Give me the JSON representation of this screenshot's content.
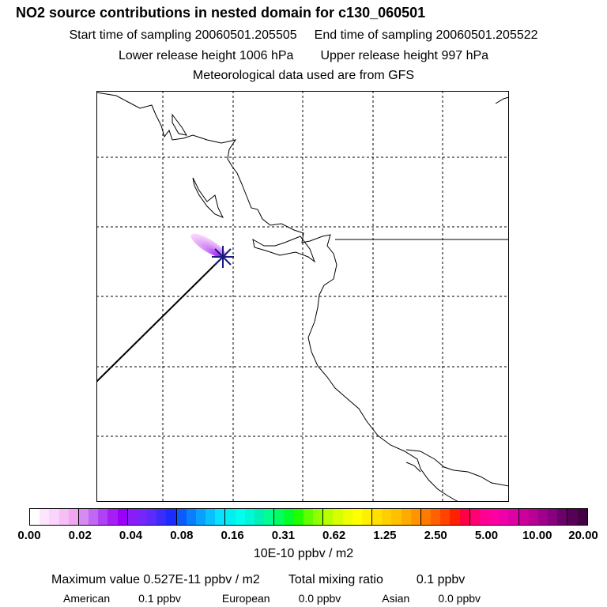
{
  "title": "NO2 source contributions in nested domain for c130_060501",
  "start_time": "Start time of sampling 20060501.205505",
  "end_time": "End time of sampling 20060501.205522",
  "lower_release": "Lower release height 1006 hPa",
  "upper_release": "Upper release height  997 hPa",
  "met_data": "Meteorological data used are from GFS",
  "colorbar": {
    "ticks": [
      "0.00",
      "0.02",
      "0.04",
      "0.08",
      "0.16",
      "0.31",
      "0.62",
      "1.25",
      "2.50",
      "5.00",
      "10.00",
      "20.00"
    ],
    "units": "10E-10 ppbv / m2",
    "colors": [
      "#ffffff",
      "#fde6fd",
      "#fbd4fb",
      "#f7bdf7",
      "#f2a6f2",
      "#d58cf2",
      "#c267f3",
      "#b142f4",
      "#a51ff5",
      "#9a00f7",
      "#8a1cf8",
      "#7526fa",
      "#5c2bfb",
      "#3b2cfc",
      "#1a2cff",
      "#0a5cff",
      "#0a7eff",
      "#0aa0ff",
      "#0ac0ff",
      "#0ae0ff",
      "#00f0f0",
      "#00ffee",
      "#00f8d8",
      "#00f0b8",
      "#00ff90",
      "#00ff60",
      "#00ff2c",
      "#20ff00",
      "#60ff00",
      "#90ff00",
      "#b8ff00",
      "#d8ff00",
      "#eeff00",
      "#ffff00",
      "#fff000",
      "#ffe000",
      "#ffd000",
      "#ffc000",
      "#ffaa00",
      "#ff9400",
      "#ff7a00",
      "#ff6000",
      "#ff4400",
      "#ff2000",
      "#ff0044",
      "#ff0070",
      "#ff0090",
      "#ff00a0",
      "#f000a8",
      "#e000a8",
      "#cc009c",
      "#b80094",
      "#a0008c",
      "#880080",
      "#6a0068",
      "#580058",
      "#440044"
    ]
  },
  "max_value": "Maximum value  0.527E-11 ppbv / m2",
  "total_mixing_label": "Total mixing ratio",
  "total_mixing_value": "0.1 ppbv",
  "regions": [
    {
      "name": "American",
      "value": "0.1 ppbv"
    },
    {
      "name": "European",
      "value": "0.0 ppbv"
    },
    {
      "name": "Asian",
      "value": "0.0 ppbv"
    }
  ]
}
